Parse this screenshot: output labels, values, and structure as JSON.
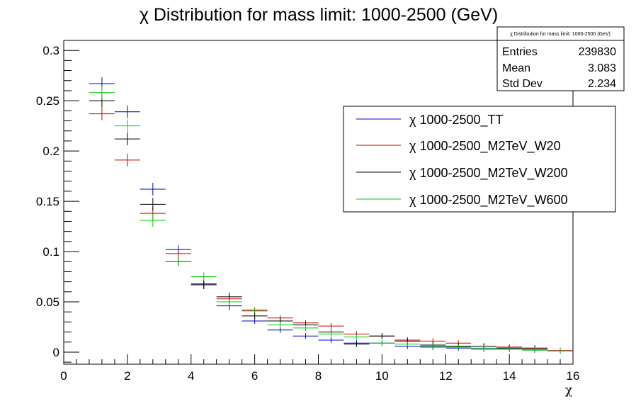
{
  "chart_data": {
    "type": "scatter",
    "title": "χ Distribution for mass limit: 1000-2500 (GeV)",
    "xlabel": "χ",
    "ylabel": "",
    "xlim": [
      0,
      16
    ],
    "ylim": [
      -0.012,
      0.31
    ],
    "xticks": [
      "0",
      "2",
      "4",
      "6",
      "8",
      "10",
      "12",
      "14",
      "16"
    ],
    "yticks": [
      "0",
      "0.05",
      "0.1",
      "0.15",
      "0.2",
      "0.25",
      "0.3"
    ],
    "grid": false,
    "stats": {
      "title": "χ Distribution for mass limit: 1000-2500 (GeV)",
      "rows": [
        {
          "label": "Entries",
          "value": "239830"
        },
        {
          "label": "Mean",
          "value": "3.083"
        },
        {
          "label": "Std Dev",
          "value": "2.234"
        }
      ]
    },
    "legend_position": "top-right",
    "bin_edges": [
      0.8,
      1.6,
      2.4,
      3.2,
      4.0,
      4.8,
      5.6,
      6.4,
      7.2,
      8.0,
      8.8,
      9.6,
      10.4,
      11.2,
      12.0,
      12.8,
      13.6,
      14.4,
      15.2,
      16.0
    ],
    "series": [
      {
        "name": "χ 1000-2500_TT",
        "color": "#0000cc",
        "values": [
          0.267,
          0.239,
          0.162,
          0.102,
          0.067,
          0.046,
          0.031,
          0.022,
          0.016,
          0.012,
          0.009,
          0.009,
          0.006,
          0.005,
          0.004,
          0.003,
          0.003,
          0.002,
          0.0015
        ]
      },
      {
        "name": "χ 1000-2500_M2TeV_W20",
        "color": "#cc0000",
        "values": [
          0.237,
          0.191,
          0.138,
          0.098,
          0.068,
          0.053,
          0.041,
          0.034,
          0.029,
          0.026,
          0.018,
          0.016,
          0.012,
          0.011,
          0.009,
          0.006,
          0.005,
          0.003,
          0.0015
        ]
      },
      {
        "name": "χ 1000-2500_M2TeV_W200",
        "color": "#000000",
        "values": [
          0.25,
          0.212,
          0.147,
          0.09,
          0.067,
          0.055,
          0.036,
          0.031,
          0.027,
          0.02,
          0.008,
          0.016,
          0.011,
          0.007,
          0.006,
          0.006,
          0.004,
          0.004,
          0.001
        ]
      },
      {
        "name": "χ 1000-2500_M2TeV_W600",
        "color": "#00cc00",
        "values": [
          0.258,
          0.225,
          0.131,
          0.09,
          0.075,
          0.05,
          0.042,
          0.027,
          0.024,
          0.018,
          0.015,
          0.009,
          0.008,
          0.006,
          0.005,
          0.004,
          0.003,
          0.002,
          0.001
        ]
      }
    ]
  }
}
